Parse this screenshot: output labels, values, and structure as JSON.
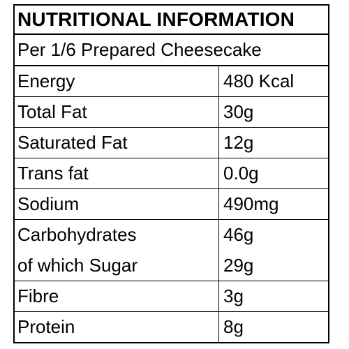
{
  "label": {
    "title": "NUTRITIONAL INFORMATION",
    "serving": "Per 1/6 Prepared Cheesecake",
    "rows": [
      {
        "name": "Energy",
        "value": "480 Kcal"
      },
      {
        "name": "Total Fat",
        "value": "30g"
      },
      {
        "name": "Saturated Fat",
        "value": "12g"
      },
      {
        "name": "Trans fat",
        "value": "0.0g"
      },
      {
        "name": "Sodium",
        "value": "490mg"
      },
      {
        "name": "Carbohydrates",
        "value": "46g",
        "sub_name": "of which Sugar",
        "sub_value": "29g"
      },
      {
        "name": "Fibre",
        "value": "3g"
      },
      {
        "name": "Protein",
        "value": "8g"
      }
    ]
  }
}
